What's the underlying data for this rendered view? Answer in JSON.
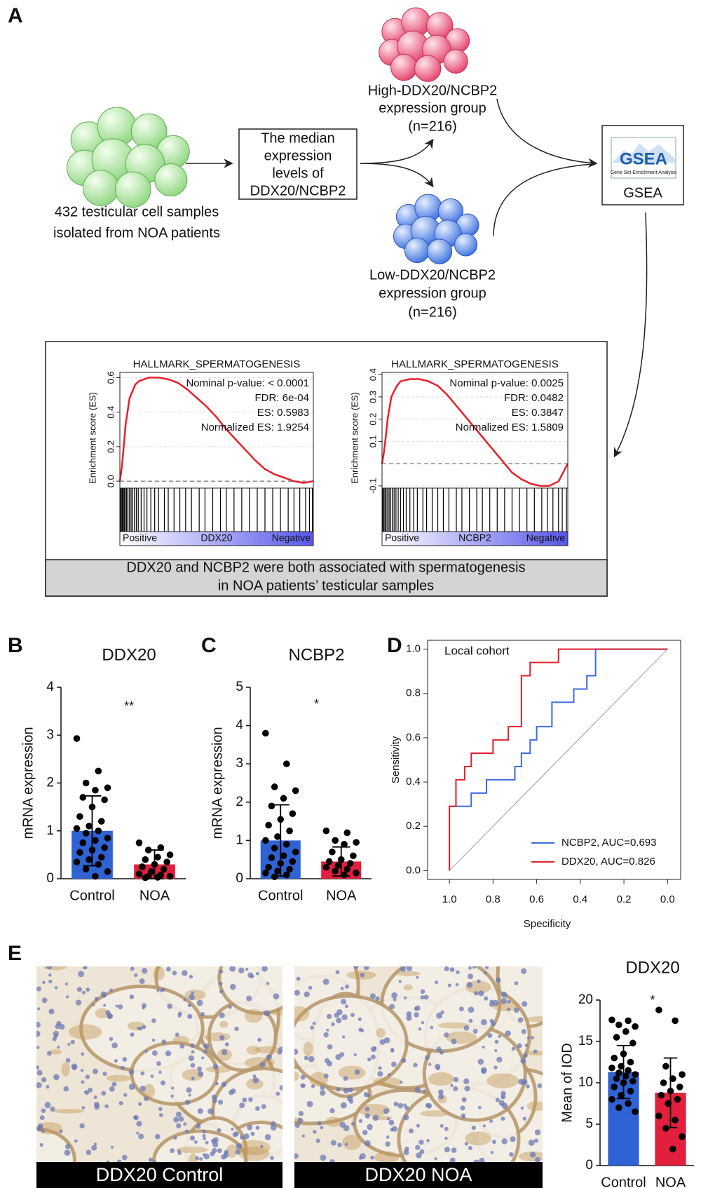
{
  "panel_labels": [
    "A",
    "B",
    "C",
    "D",
    "E"
  ],
  "diagram": {
    "source": [
      "432 testicular cell samples",
      "isolated from NOA patients"
    ],
    "step": [
      "The median",
      "expression",
      "levels of",
      "DDX20/NCBP2"
    ],
    "high": [
      "High-DDX20/NCBP2",
      "expression group",
      "(n=216)"
    ],
    "low": [
      "Low-DDX20/NCBP2",
      "expression group",
      "(n=216)"
    ],
    "tool": "GSEA",
    "logo": [
      "GSEA",
      "Gene Set Enrichment Analysis"
    ],
    "conclusion": [
      "DDX20 and NCBP2 were both associated with spermatogenesis",
      "in NOA patients’ testicular samples"
    ]
  },
  "images": [
    {
      "caption": "DDX20 Control"
    },
    {
      "caption": "DDX20 NOA"
    }
  ],
  "chart_data": [
    {
      "type": "gsea",
      "title": "HALLMARK_SPERMATOGENESIS",
      "y_label": "Enrichment score (ES)",
      "annotations": [
        "Nominal p-value: < 0.0001",
        "FDR: 6e-04",
        "ES: 0.5983",
        "Normalized ES: 1.9254"
      ],
      "x": [
        0,
        1,
        2,
        3,
        5,
        8,
        10,
        15,
        20,
        25,
        30,
        35,
        40,
        45,
        50,
        55,
        60,
        65,
        70,
        75,
        80,
        85,
        90,
        95,
        100
      ],
      "values": [
        0,
        0.08,
        0.2,
        0.33,
        0.48,
        0.56,
        0.58,
        0.6,
        0.6,
        0.59,
        0.57,
        0.53,
        0.48,
        0.43,
        0.37,
        0.3,
        0.24,
        0.18,
        0.12,
        0.07,
        0.04,
        0.02,
        0.0,
        -0.01,
        0
      ],
      "color": "#e8202a",
      "hits": [
        0.3,
        0.8,
        1.3,
        1.8,
        2.3,
        2.8,
        3.5,
        4.2,
        5,
        5.8,
        6.6,
        7.5,
        8.5,
        9.5,
        11,
        12.5,
        14,
        16,
        18,
        20,
        23,
        25,
        28,
        31,
        34,
        37,
        41,
        44,
        48,
        52,
        55,
        59,
        63,
        67,
        71,
        75,
        79,
        83,
        87,
        90,
        93,
        96,
        98,
        99.5
      ],
      "rank_labels": [
        "Positive",
        "DDX20",
        "Negative"
      ],
      "xlim": [
        0,
        100
      ],
      "ylim": [
        -0.04,
        0.63
      ],
      "yticks": [
        {
          "value": 0,
          "label": "0.0"
        },
        0.2,
        0.4,
        0.6
      ],
      "grid": true
    },
    {
      "type": "gsea",
      "title": "HALLMARK_SPERMATOGENESIS",
      "y_label": "Enrichment score (ES)",
      "annotations": [
        "Nominal p-value: 0.0025",
        "FDR: 0.0482",
        "ES: 0.3847",
        "Normalized ES: 1.5809"
      ],
      "x": [
        0,
        1,
        2,
        3,
        5,
        8,
        10,
        15,
        20,
        25,
        30,
        35,
        40,
        45,
        50,
        55,
        60,
        65,
        70,
        75,
        80,
        85,
        90,
        95,
        100
      ],
      "values": [
        0,
        0.05,
        0.12,
        0.2,
        0.3,
        0.35,
        0.37,
        0.38,
        0.38,
        0.37,
        0.35,
        0.31,
        0.26,
        0.21,
        0.16,
        0.11,
        0.06,
        0.01,
        -0.04,
        -0.07,
        -0.09,
        -0.1,
        -0.1,
        -0.08,
        0.0
      ],
      "color": "#e8202a",
      "hits": [
        0.4,
        1,
        1.6,
        2.2,
        3,
        3.8,
        4.6,
        5.5,
        6.5,
        7.5,
        8.7,
        10,
        11.5,
        13,
        15,
        17,
        19,
        22,
        24,
        27,
        30,
        33,
        36,
        40,
        43,
        47,
        51,
        54,
        58,
        62,
        66,
        70,
        74,
        78,
        82,
        86,
        89,
        92,
        95,
        97,
        99.3
      ],
      "rank_labels": [
        "Positive",
        "NCBP2",
        "Negative"
      ],
      "xlim": [
        0,
        100
      ],
      "ylim": [
        -0.11,
        0.41
      ],
      "yticks": [
        -0.1,
        0.1,
        0.2,
        0.3,
        0.4
      ],
      "grid": true
    },
    {
      "type": "bar",
      "title": "DDX20",
      "y_label": "mRNA expression",
      "annotation": "**",
      "categories": [
        "Control",
        "NOA"
      ],
      "values": [
        1.0,
        0.3
      ],
      "errors": [
        0.73,
        0.3
      ],
      "colors": [
        "#2f62d2",
        "#e21f3d"
      ],
      "points": [
        [
          2.93,
          2.25,
          2.0,
          1.9,
          1.85,
          1.7,
          1.65,
          1.5,
          1.3,
          1.2,
          1.1,
          1.05,
          1.0,
          0.95,
          0.85,
          0.8,
          0.75,
          0.65,
          0.6,
          0.55,
          0.45,
          0.4,
          0.35,
          0.3,
          0.2,
          0.15,
          0.05
        ],
        [
          0.75,
          0.65,
          0.6,
          0.5,
          0.45,
          0.4,
          0.35,
          0.3,
          0.25,
          0.2,
          0.15,
          0.1,
          0.08,
          0.05,
          0.05,
          0.03,
          0.02
        ]
      ],
      "ylim": [
        0,
        4
      ],
      "yticks": [
        0,
        1,
        2,
        3,
        4
      ]
    },
    {
      "type": "bar",
      "title": "NCBP2",
      "y_label": "mRNA expression",
      "annotation": "*",
      "categories": [
        "Control",
        "NOA"
      ],
      "values": [
        1.0,
        0.45
      ],
      "errors": [
        0.93,
        0.38
      ],
      "colors": [
        "#2f62d2",
        "#e21f3d"
      ],
      "points": [
        [
          3.8,
          3.0,
          2.4,
          2.3,
          2.1,
          1.9,
          1.7,
          1.55,
          1.4,
          1.25,
          1.1,
          1.0,
          0.9,
          0.8,
          0.7,
          0.6,
          0.55,
          0.45,
          0.4,
          0.3,
          0.25,
          0.2,
          0.15,
          0.1,
          0.05
        ],
        [
          1.25,
          1.2,
          1.0,
          0.95,
          0.9,
          0.7,
          0.6,
          0.5,
          0.45,
          0.4,
          0.35,
          0.3,
          0.25,
          0.2,
          0.15,
          0.1
        ]
      ],
      "ylim": [
        0,
        5
      ],
      "yticks": [
        0,
        1,
        2,
        3,
        4,
        5
      ]
    },
    {
      "type": "roc",
      "annotation": "Local cohort",
      "x_label": "Specificity",
      "y_label": "Sensitivity",
      "series": [
        {
          "name": "NCBP2, AUC=0.693",
          "color": "#3a6be0",
          "x": [
            1,
            1,
            0.9,
            0.9,
            0.83,
            0.83,
            0.7,
            0.7,
            0.67,
            0.67,
            0.63,
            0.63,
            0.6,
            0.6,
            0.53,
            0.53,
            0.43,
            0.43,
            0.37,
            0.37,
            0.33,
            0.33,
            0
          ],
          "values": [
            0,
            0.29,
            0.29,
            0.35,
            0.35,
            0.41,
            0.41,
            0.47,
            0.47,
            0.53,
            0.53,
            0.59,
            0.59,
            0.65,
            0.65,
            0.76,
            0.76,
            0.82,
            0.82,
            0.88,
            0.88,
            1,
            1
          ]
        },
        {
          "name": "DDX20, AUC=0.826",
          "color": "#e21f2a",
          "x": [
            1,
            1,
            0.97,
            0.97,
            0.93,
            0.93,
            0.9,
            0.9,
            0.8,
            0.8,
            0.73,
            0.73,
            0.67,
            0.67,
            0.63,
            0.63,
            0.5,
            0.5,
            0
          ],
          "values": [
            0,
            0.29,
            0.29,
            0.41,
            0.41,
            0.47,
            0.47,
            0.53,
            0.53,
            0.59,
            0.59,
            0.65,
            0.65,
            0.88,
            0.88,
            0.94,
            0.94,
            1,
            1
          ]
        }
      ],
      "legend": "lower right",
      "xlim": [
        1.1,
        -0.06
      ],
      "ylim": [
        -0.04,
        1.04
      ],
      "xticks": [
        {
          "value": 1,
          "label": "1.0"
        },
        0.8,
        0.6,
        0.4,
        0.2,
        {
          "value": 0,
          "label": "0.0"
        }
      ],
      "yticks": [
        {
          "value": 0,
          "label": "0.0"
        },
        0.2,
        0.4,
        0.6,
        0.8,
        {
          "value": 1,
          "label": "1.0"
        }
      ]
    },
    {
      "type": "bar",
      "title": "DDX20",
      "y_label": "Mean of IOD",
      "annotation": "*",
      "categories": [
        "Control",
        "NOA"
      ],
      "values": [
        11.3,
        8.8
      ],
      "errors": [
        3.2,
        4.2
      ],
      "colors": [
        "#2f62d2",
        "#e21f3d"
      ],
      "points": [
        [
          17.6,
          17.5,
          17.0,
          16.8,
          16.2,
          15.5,
          14.8,
          13.5,
          13.0,
          12.5,
          12.0,
          11.8,
          11.5,
          11.2,
          11.0,
          10.8,
          10.5,
          10.2,
          10.0,
          9.5,
          9.0,
          8.5,
          8.0,
          7.5,
          7.0,
          6.5
        ],
        [
          18.8,
          17.5,
          12.0,
          11.0,
          10.5,
          10.0,
          9.5,
          9.0,
          8.5,
          8.0,
          7.5,
          6.0,
          5.5,
          4.5,
          3.5,
          2.0
        ]
      ],
      "ylim": [
        0,
        20
      ],
      "yticks": [
        0,
        5,
        10,
        15,
        20
      ]
    }
  ]
}
